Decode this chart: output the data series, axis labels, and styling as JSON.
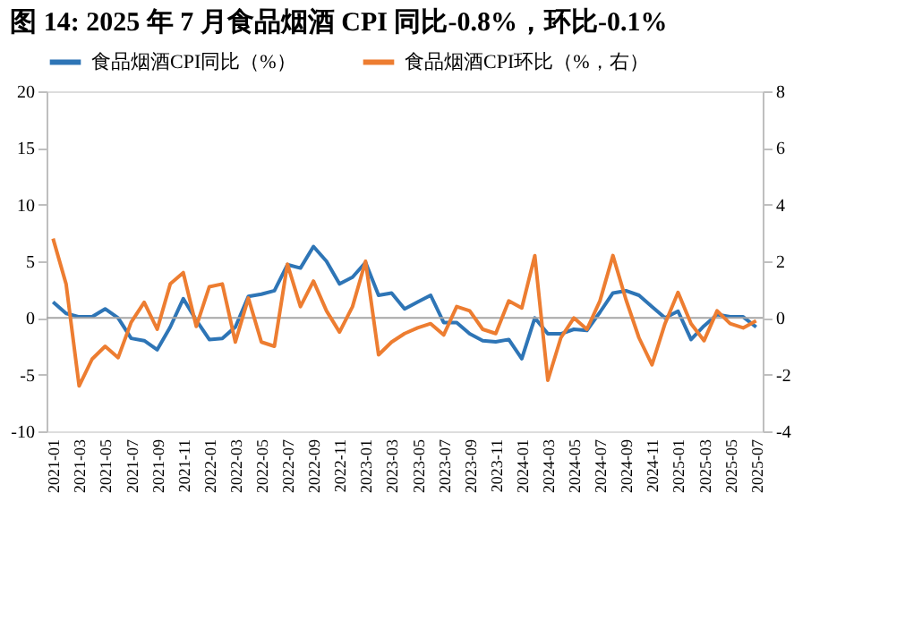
{
  "chart_data": {
    "type": "line",
    "title": "图 14: 2025 年 7 月食品烟酒 CPI 同比-0.8%，环比-0.1%",
    "categories": [
      "2021-01",
      null,
      "2021-03",
      null,
      "2021-05",
      null,
      "2021-07",
      null,
      "2021-09",
      null,
      "2021-11",
      null,
      "2022-01",
      null,
      "2022-03",
      null,
      "2022-05",
      null,
      "2022-07",
      null,
      "2022-09",
      null,
      "2022-11",
      null,
      "2023-01",
      null,
      "2023-03",
      null,
      "2023-05",
      null,
      "2023-07",
      null,
      "2023-09",
      null,
      "2023-11",
      null,
      "2024-01",
      null,
      "2024-03",
      null,
      "2024-05",
      null,
      "2024-07",
      null,
      "2024-09",
      null,
      "2024-11",
      null,
      "2025-01",
      null,
      "2025-03",
      null,
      "2025-05",
      null,
      "2025-07"
    ],
    "series": [
      {
        "name": "食品烟酒CPI同比（%）",
        "color": "#2e75b6",
        "values": [
          1.4,
          0.4,
          0.1,
          0.1,
          0.8,
          0.0,
          -1.8,
          -2.0,
          -2.8,
          -0.8,
          1.7,
          -0.2,
          -1.9,
          -1.8,
          -0.8,
          1.9,
          2.1,
          2.4,
          4.7,
          4.4,
          6.3,
          5.0,
          3.0,
          3.6,
          4.9,
          2.0,
          2.2,
          0.8,
          1.4,
          2.0,
          -0.4,
          -0.4,
          -1.4,
          -2.0,
          -2.1,
          -1.9,
          -3.6,
          0.0,
          -1.4,
          -1.4,
          -1.0,
          -1.1,
          0.5,
          2.2,
          2.4,
          2.0,
          1.0,
          0.0,
          0.6,
          -1.9,
          -0.7,
          0.3,
          0.1,
          0.1,
          -0.8
        ]
      },
      {
        "name": "食品烟酒CPI环比（%，右）",
        "color": "#ed7d31",
        "axis": "y2",
        "values": [
          2.8,
          1.2,
          -2.4,
          -1.45,
          -1.0,
          -1.4,
          -0.15,
          0.55,
          -0.4,
          1.2,
          1.6,
          -0.3,
          1.1,
          1.2,
          -0.85,
          0.7,
          -0.85,
          -1.0,
          1.9,
          0.4,
          1.3,
          0.25,
          -0.5,
          0.4,
          2.0,
          -1.3,
          -0.85,
          -0.55,
          -0.35,
          -0.2,
          -0.6,
          0.4,
          0.25,
          -0.4,
          -0.55,
          0.6,
          0.35,
          2.2,
          -2.2,
          -0.7,
          0.0,
          -0.4,
          0.6,
          2.2,
          0.65,
          -0.7,
          -1.65,
          -0.2,
          0.9,
          -0.2,
          -0.8,
          0.25,
          -0.2,
          -0.35,
          -0.1
        ]
      }
    ],
    "ylim": [
      -10,
      20
    ],
    "yticks": [
      -10,
      -5,
      0,
      5,
      10,
      15,
      20
    ],
    "y2lim": [
      -4,
      8
    ],
    "y2ticks": [
      -4,
      -2,
      0,
      2,
      4,
      6,
      8
    ],
    "ref_lines": [
      {
        "axis": "y",
        "value": 0,
        "color": "#a6a6a6"
      }
    ],
    "legend": "top",
    "marker": "none",
    "line_style": "solid"
  }
}
